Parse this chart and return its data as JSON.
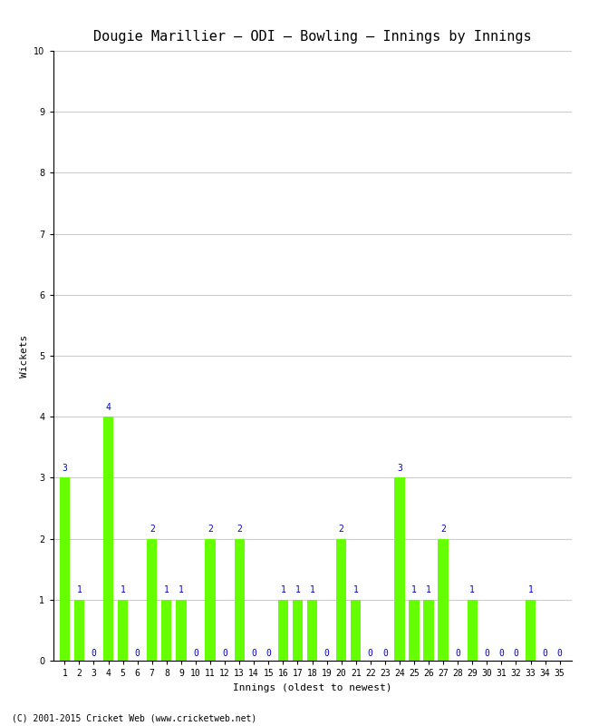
{
  "title": "Dougie Marillier – ODI – Bowling – Innings by Innings",
  "xlabel": "Innings (oldest to newest)",
  "ylabel": "Wickets",
  "innings": [
    1,
    2,
    3,
    4,
    5,
    6,
    7,
    8,
    9,
    10,
    11,
    12,
    13,
    14,
    15,
    16,
    17,
    18,
    19,
    20,
    21,
    22,
    23,
    24,
    25,
    26,
    27,
    28,
    29,
    30,
    31,
    32,
    33,
    34,
    35
  ],
  "wickets": [
    3,
    1,
    0,
    4,
    1,
    0,
    2,
    1,
    1,
    0,
    2,
    0,
    2,
    0,
    0,
    1,
    1,
    1,
    0,
    2,
    1,
    0,
    0,
    3,
    1,
    1,
    2,
    0,
    1,
    0,
    0,
    0,
    1,
    0,
    0
  ],
  "bar_color": "#66ff00",
  "label_color": "#0000cc",
  "ylim": [
    0,
    10
  ],
  "yticks": [
    0,
    1,
    2,
    3,
    4,
    5,
    6,
    7,
    8,
    9,
    10
  ],
  "background_color": "#ffffff",
  "grid_color": "#cccccc",
  "footer": "(C) 2001-2015 Cricket Web (www.cricketweb.net)",
  "title_fontsize": 11,
  "axis_label_fontsize": 8,
  "tick_fontsize": 7,
  "bar_label_fontsize": 7,
  "footer_fontsize": 7
}
